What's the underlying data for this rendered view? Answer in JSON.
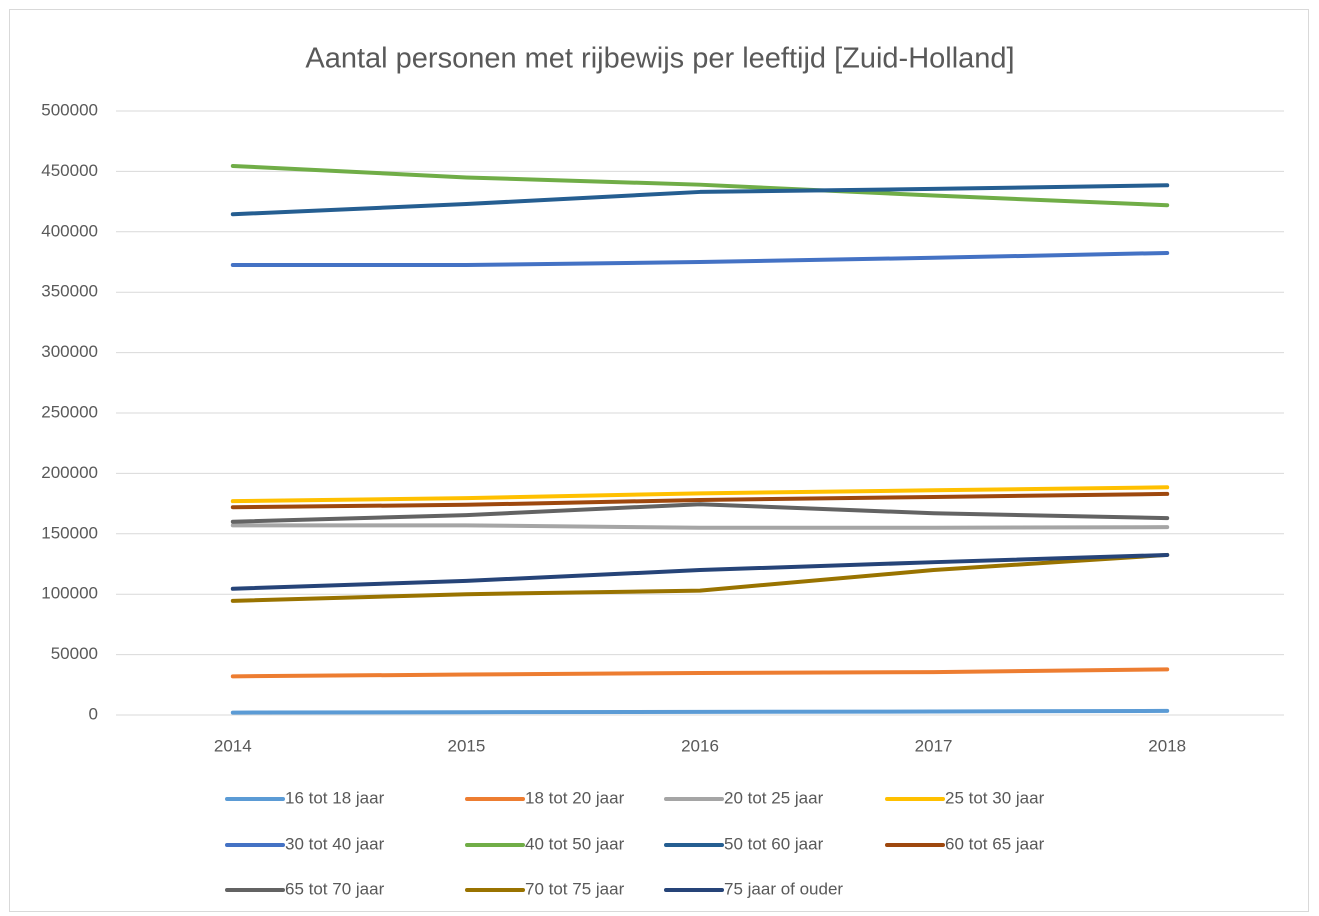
{
  "chart_data": {
    "type": "line",
    "title": "Aantal personen met rijbewijs per leeftijd [Zuid-Holland]",
    "categories": [
      "2014",
      "2015",
      "2016",
      "2017",
      "2018"
    ],
    "series": [
      {
        "name": "16 tot 18 jaar",
        "color": "#5b9bd5",
        "values": [
          2000,
          2300,
          2600,
          2900,
          3400
        ]
      },
      {
        "name": "18 tot 20 jaar",
        "color": "#ed7d31",
        "values": [
          32000,
          33500,
          34800,
          35500,
          37800
        ]
      },
      {
        "name": "20 tot 25 jaar",
        "color": "#a5a5a5",
        "values": [
          157000,
          157000,
          155000,
          155000,
          155500
        ]
      },
      {
        "name": "25 tot 30 jaar",
        "color": "#ffc000",
        "values": [
          177000,
          179500,
          183500,
          186000,
          188500
        ]
      },
      {
        "name": "30 tot 40 jaar",
        "color": "#4472c4",
        "values": [
          372500,
          372500,
          375000,
          378500,
          382500
        ]
      },
      {
        "name": "40 tot 50 jaar",
        "color": "#70ad47",
        "values": [
          454500,
          445000,
          439000,
          430000,
          422000
        ]
      },
      {
        "name": "50 tot 60 jaar",
        "color": "#255e91",
        "values": [
          414500,
          423000,
          433000,
          435500,
          438500
        ]
      },
      {
        "name": "60 tot 65 jaar",
        "color": "#9e480e",
        "values": [
          172000,
          174000,
          178000,
          180500,
          183000
        ]
      },
      {
        "name": "65 tot 70 jaar",
        "color": "#636363",
        "values": [
          160000,
          165500,
          174500,
          167000,
          163000
        ]
      },
      {
        "name": "70 tot 75 jaar",
        "color": "#997300",
        "values": [
          94500,
          100000,
          103000,
          120000,
          132500
        ]
      },
      {
        "name": "75 jaar of ouder",
        "color": "#264478",
        "values": [
          104500,
          111000,
          120000,
          126500,
          132500
        ]
      }
    ],
    "ylim": [
      0,
      500000
    ],
    "yticks": [
      0,
      50000,
      100000,
      150000,
      200000,
      250000,
      300000,
      350000,
      400000,
      450000,
      500000
    ],
    "grid": true,
    "legend": "bottom"
  }
}
